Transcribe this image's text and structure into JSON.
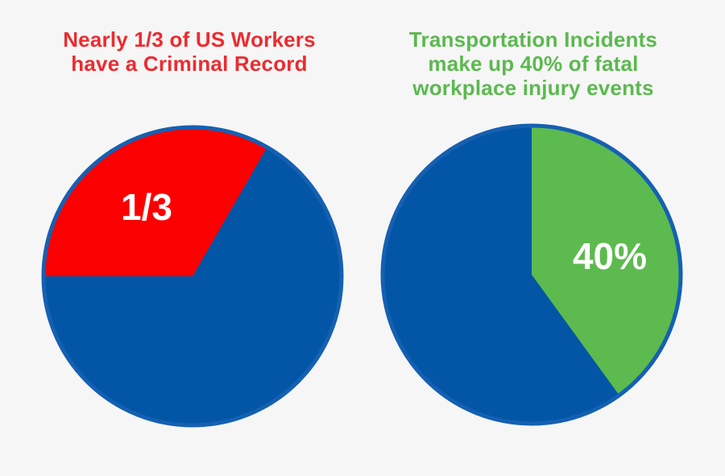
{
  "page": {
    "background_color": "#f6f6f6",
    "blue_fill_color": "#0356a5",
    "outline_blue_color": "#1560b2"
  },
  "chart_data": [
    {
      "type": "pie",
      "title": "Nearly 1/3 of US Workers have a Criminal Record",
      "title_lines": [
        "Nearly 1/3 of US Workers",
        "have a Criminal Record"
      ],
      "title_color": "#ec2b30",
      "outline_color": "#1560b2",
      "start_angle_deg": 270,
      "legend": "none",
      "slices": [
        {
          "name": "workers-with-criminal-record",
          "label": "1/3",
          "value": 1,
          "color": "#fb0000",
          "label_color": "#ffffff"
        },
        {
          "name": "workers-without-criminal-record",
          "label": "",
          "value": 2,
          "color": "#0356a5",
          "label_color": ""
        }
      ]
    },
    {
      "type": "pie",
      "title": "Transportation Incidents make up 40% of fatal workplace injury events",
      "title_lines": [
        "Transportation Incidents",
        "make up 40% of fatal",
        "workplace injury events"
      ],
      "title_color": "#5bb94f",
      "outline_color": "#1560b2",
      "start_angle_deg": 0,
      "legend": "none",
      "slices": [
        {
          "name": "transportation-incidents",
          "label": "40%",
          "value": 40,
          "color": "#5cba4e",
          "label_color": "#ffffff"
        },
        {
          "name": "other-fatal-injury-events",
          "label": "",
          "value": 60,
          "color": "#0356a5",
          "label_color": ""
        }
      ]
    }
  ]
}
